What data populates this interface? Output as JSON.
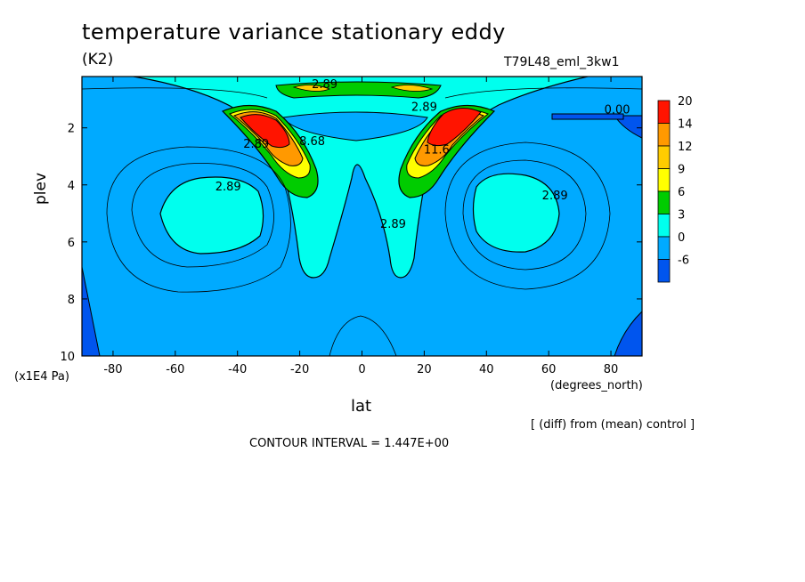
{
  "title": "temperature variance stationary eddy",
  "units": "(K2)",
  "run_label": "T79L48_eml_3kw1",
  "comparison_note": "[ (diff) from (mean) control ]",
  "contour_interval_label": "CONTOUR INTERVAL = 1.447E+00",
  "chart_data": {
    "type": "contour",
    "title": "temperature variance stationary eddy",
    "subtitle": "(K2)",
    "xlabel": "lat",
    "x_unit": "(degrees_north)",
    "ylabel": "plev",
    "y_unit": "(x1E4 Pa)",
    "xlim": [
      -90,
      90
    ],
    "ylim": [
      10,
      0.2
    ],
    "x_ticks": [
      -80,
      -60,
      -40,
      -20,
      0,
      20,
      40,
      60,
      80
    ],
    "x_tick_labels": [
      "-80",
      "-60",
      "-40",
      "-20",
      "0",
      "20",
      "40",
      "60",
      "80"
    ],
    "y_ticks": [
      2,
      4,
      6,
      8,
      10
    ],
    "y_tick_labels": [
      "2",
      "4",
      "6",
      "8",
      "10"
    ],
    "contour_interval": 1.447,
    "colorbar": {
      "levels": [
        "20",
        "14",
        "12",
        "9",
        "6",
        "3",
        "0",
        "-6"
      ],
      "colors": [
        "#ff1400",
        "#ff9900",
        "#ffcc00",
        "#ffff00",
        "#00cc00",
        "#00ffee",
        "#00aaff",
        "#0055ee"
      ]
    },
    "contour_labels": [
      {
        "text": "2.89",
        "lat": -34,
        "plev": 2.7
      },
      {
        "text": "2.89",
        "lat": -43,
        "plev": 4.2
      },
      {
        "text": "2.89",
        "lat": 10,
        "plev": 5.5
      },
      {
        "text": "2.89",
        "lat": 62,
        "plev": 4.5
      },
      {
        "text": "2.89",
        "lat": -12,
        "plev": 0.6
      },
      {
        "text": "2.89",
        "lat": 20,
        "plev": 1.4
      },
      {
        "text": "0.00",
        "lat": 82,
        "plev": 1.5
      },
      {
        "text": "8.68",
        "lat": -16,
        "plev": 2.6
      },
      {
        "text": "11.6",
        "lat": 24,
        "plev": 2.9
      }
    ]
  }
}
